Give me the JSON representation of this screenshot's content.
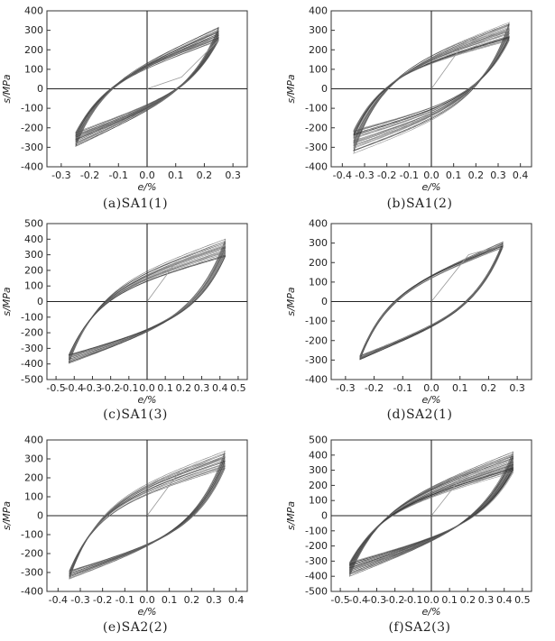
{
  "chart_data": [
    {
      "type": "line",
      "caption": "(a)SA1(1)",
      "xlabel": "e/%",
      "ylabel": "s/MPa",
      "xlim": [
        -0.35,
        0.35
      ],
      "ylim": [
        -400,
        400
      ],
      "xticks": [
        -0.3,
        -0.2,
        -0.1,
        0.0,
        0.1,
        0.2,
        0.3
      ],
      "xtick_labels": [
        "-0.3",
        "-0.2",
        "-0.1",
        "0.0",
        "0.1",
        "0.2",
        "0.3"
      ],
      "yticks": [
        -400,
        -300,
        -200,
        -100,
        0,
        100,
        200,
        300,
        400
      ],
      "ytick_labels": [
        "-400",
        "-300",
        "-200",
        "-100",
        "0",
        "100",
        "200",
        "300",
        "400"
      ],
      "loop": {
        "strain_amplitude": 0.25,
        "peak_stress_max": 315,
        "peak_stress_min": 250,
        "valley_stress_min": -295,
        "valley_stress_max": -225,
        "knee": 0.45,
        "initial_yield_strain": 0.12,
        "cycles": 20
      },
      "initial_loading": {
        "x": [
          0.0,
          0.12,
          0.25
        ],
        "y": [
          0,
          60,
          250
        ]
      }
    },
    {
      "type": "line",
      "caption": "(b)SA1(2)",
      "xlabel": "e/%",
      "ylabel": "s/MPa",
      "xlim": [
        -0.45,
        0.45
      ],
      "ylim": [
        -400,
        400
      ],
      "xticks": [
        -0.4,
        -0.3,
        -0.2,
        -0.1,
        0.0,
        0.1,
        0.2,
        0.3,
        0.4
      ],
      "xtick_labels": [
        "-0.4",
        "-0.3",
        "-0.2",
        "-0.1",
        "0.0",
        "0.1",
        "0.2",
        "0.3",
        "0.4"
      ],
      "yticks": [
        -400,
        -300,
        -200,
        -100,
        0,
        100,
        200,
        300,
        400
      ],
      "ytick_labels": [
        "-400",
        "-300",
        "-200",
        "-100",
        "0",
        "100",
        "200",
        "300",
        "400"
      ],
      "loop": {
        "strain_amplitude": 0.35,
        "peak_stress_max": 340,
        "peak_stress_min": 250,
        "valley_stress_min": -330,
        "valley_stress_max": -215,
        "knee": 0.55,
        "initial_yield_strain": 0.15,
        "cycles": 20
      },
      "initial_loading": {
        "x": [
          0.0,
          0.15,
          0.35
        ],
        "y": [
          0,
          240,
          300
        ]
      }
    },
    {
      "type": "line",
      "caption": "(c)SA1(3)",
      "xlabel": "e/%",
      "ylabel": "s/MPa",
      "xlim": [
        -0.55,
        0.55
      ],
      "ylim": [
        -500,
        500
      ],
      "xticks": [
        -0.5,
        -0.4,
        -0.3,
        -0.2,
        -0.1,
        0.0,
        0.1,
        0.2,
        0.3,
        0.4,
        0.5
      ],
      "xtick_labels": [
        "-0.5",
        "-0.4",
        "-0.3",
        "-0.2",
        "-0.1",
        "0.0",
        "0.1",
        "0.2",
        "0.3",
        "0.4",
        "0.5"
      ],
      "yticks": [
        -500,
        -400,
        -300,
        -200,
        -100,
        0,
        100,
        200,
        300,
        400,
        500
      ],
      "ytick_labels": [
        "-500",
        "-400",
        "-300",
        "-200",
        "-100",
        "0",
        "100",
        "200",
        "300",
        "400",
        "500"
      ],
      "loop": {
        "strain_amplitude": 0.43,
        "peak_stress_max": 400,
        "peak_stress_min": 290,
        "valley_stress_min": -400,
        "valley_stress_max": -340,
        "knee": 0.55,
        "initial_yield_strain": 0.15,
        "cycles": 18
      },
      "initial_loading": {
        "x": [
          0.0,
          0.15,
          0.43
        ],
        "y": [
          0,
          240,
          360
        ]
      }
    },
    {
      "type": "line",
      "caption": "(d)SA2(1)",
      "xlabel": "e/%",
      "ylabel": "s/MPa",
      "xlim": [
        -0.35,
        0.35
      ],
      "ylim": [
        -400,
        400
      ],
      "xticks": [
        -0.3,
        -0.2,
        -0.1,
        0.0,
        0.1,
        0.2,
        0.3
      ],
      "xtick_labels": [
        "-0.3",
        "-0.2",
        "-0.1",
        "0.0",
        "0.1",
        "0.2",
        "0.3"
      ],
      "yticks": [
        -400,
        -300,
        -200,
        -100,
        0,
        100,
        200,
        300,
        400
      ],
      "ytick_labels": [
        "-400",
        "-300",
        "-200",
        "-100",
        "0",
        "100",
        "200",
        "300",
        "400"
      ],
      "loop": {
        "strain_amplitude": 0.25,
        "peak_stress_max": 305,
        "peak_stress_min": 280,
        "valley_stress_min": -300,
        "valley_stress_max": -280,
        "knee": 0.5,
        "initial_yield_strain": 0.13,
        "cycles": 12
      },
      "initial_loading": {
        "x": [
          0.0,
          0.13,
          0.25
        ],
        "y": [
          0,
          240,
          290
        ]
      }
    },
    {
      "type": "line",
      "caption": "(e)SA2(2)",
      "xlabel": "e/%",
      "ylabel": "s/MPa",
      "xlim": [
        -0.45,
        0.45
      ],
      "ylim": [
        -400,
        400
      ],
      "xticks": [
        -0.4,
        -0.3,
        -0.2,
        -0.1,
        0.0,
        0.1,
        0.2,
        0.3,
        0.4
      ],
      "xtick_labels": [
        "-0.4",
        "-0.3",
        "-0.2",
        "-0.1",
        "0.0",
        "0.1",
        "0.2",
        "0.3",
        "0.4"
      ],
      "yticks": [
        -400,
        -300,
        -200,
        -100,
        0,
        100,
        200,
        300,
        400
      ],
      "ytick_labels": [
        "-400",
        "-300",
        "-200",
        "-100",
        "0",
        "100",
        "200",
        "300",
        "400"
      ],
      "loop": {
        "strain_amplitude": 0.35,
        "peak_stress_max": 340,
        "peak_stress_min": 250,
        "valley_stress_min": -335,
        "valley_stress_max": -290,
        "knee": 0.55,
        "initial_yield_strain": 0.15,
        "cycles": 16
      },
      "initial_loading": {
        "x": [
          0.0,
          0.15,
          0.35
        ],
        "y": [
          0,
          240,
          310
        ]
      }
    },
    {
      "type": "line",
      "caption": "(f)SA2(3)",
      "xlabel": "e/%",
      "ylabel": "s/MPa",
      "xlim": [
        -0.55,
        0.55
      ],
      "ylim": [
        -500,
        500
      ],
      "xticks": [
        -0.5,
        -0.4,
        -0.3,
        -0.2,
        -0.1,
        0.0,
        0.1,
        0.2,
        0.3,
        0.4,
        0.5
      ],
      "xtick_labels": [
        "-0.5",
        "-0.4",
        "-0.3",
        "-0.2",
        "-0.1",
        "0.0",
        "0.1",
        "0.2",
        "0.3",
        "0.4",
        "0.5"
      ],
      "yticks": [
        -500,
        -400,
        -300,
        -200,
        -100,
        0,
        100,
        200,
        300,
        400,
        500
      ],
      "ytick_labels": [
        "-500",
        "-400",
        "-300",
        "-200",
        "-100",
        "0",
        "100",
        "200",
        "300",
        "400",
        "500"
      ],
      "loop": {
        "strain_amplitude": 0.45,
        "peak_stress_max": 420,
        "peak_stress_min": 290,
        "valley_stress_min": -400,
        "valley_stress_max": -310,
        "knee": 0.5,
        "initial_yield_strain": 0.17,
        "cycles": 22
      },
      "initial_loading": {
        "x": [
          0.0,
          0.17,
          0.45
        ],
        "y": [
          0,
          260,
          400
        ]
      }
    }
  ]
}
